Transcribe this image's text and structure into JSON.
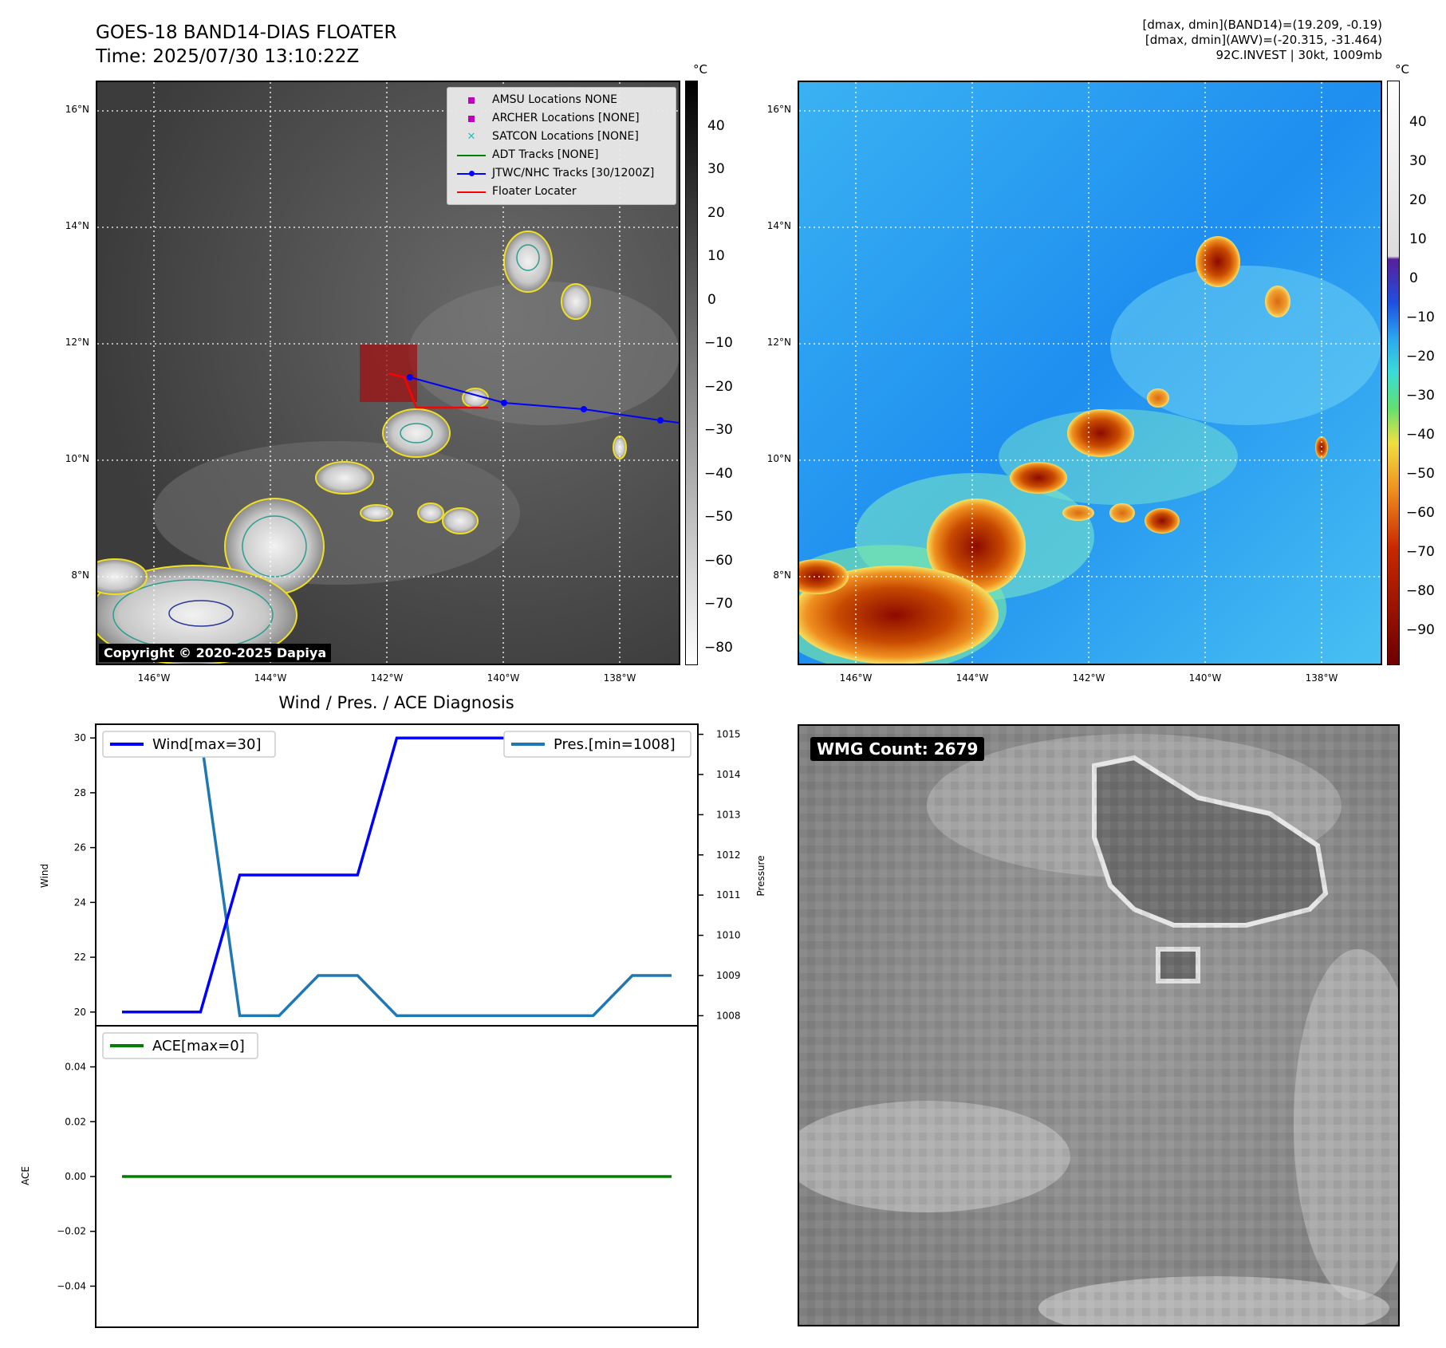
{
  "header": {
    "title": "GOES-18 BAND14-DIAS FLOATER",
    "time": "Time: 2025/07/30 13:10:22Z",
    "info_lines": [
      "[dmax, dmin](BAND14)=(19.209, -0.19)",
      "[dmax, dmin](AWV)=(-20.315, -31.464)",
      "92C.INVEST | 30kt, 1009mb"
    ]
  },
  "map_axes": {
    "lat_ticks": [
      "16°N",
      "14°N",
      "12°N",
      "10°N",
      "8°N"
    ],
    "lon_ticks": [
      "146°W",
      "144°W",
      "142°W",
      "140°W",
      "138°W"
    ]
  },
  "left_map": {
    "copyright": "Copyright © 2020-2025 Dapiya",
    "legend": [
      {
        "label": "AMSU Locations NONE",
        "symbol": "square",
        "color": "#c000c0"
      },
      {
        "label": "ARCHER Locations [NONE]",
        "symbol": "square",
        "color": "#c000c0"
      },
      {
        "label": "SATCON Locations [NONE]",
        "symbol": "x",
        "color": "#20c0c0"
      },
      {
        "label": "ADT Tracks [NONE]",
        "symbol": "line",
        "color": "#008000"
      },
      {
        "label": "JTWC/NHC Tracks [30/1200Z]",
        "symbol": "line-dot",
        "color": "#0000ff"
      },
      {
        "label": "Floater Locater",
        "symbol": "line",
        "color": "#ff0000"
      }
    ],
    "colorbar": {
      "unit": "°C",
      "ticks": [
        "40",
        "30",
        "20",
        "10",
        "0",
        "−10",
        "−20",
        "−30",
        "−40",
        "−50",
        "−60",
        "−70",
        "−80"
      ]
    }
  },
  "right_map": {
    "colorbar": {
      "unit": "°C",
      "ticks": [
        "40",
        "30",
        "20",
        "10",
        "0",
        "−10",
        "−20",
        "−30",
        "−40",
        "−50",
        "−60",
        "−70",
        "−80",
        "−90"
      ]
    }
  },
  "wmg_panel": {
    "count_label": "WMG Count: 2679"
  },
  "diagnosis": {
    "title": "Wind / Pres. / ACE Diagnosis",
    "wind_axis_label": "Wind",
    "pressure_axis_label": "Pressure",
    "ace_axis_label": "ACE",
    "wind_legend": "Wind[max=30]",
    "pres_legend": "Pres.[min=1008]",
    "ace_legend": "ACE[max=0]",
    "wind_ticks": [
      "30",
      "28",
      "26",
      "24",
      "22",
      "20"
    ],
    "pressure_ticks": [
      "1015",
      "1014",
      "1013",
      "1012",
      "1011",
      "1010",
      "1009",
      "1008"
    ],
    "ace_ticks": [
      "0.04",
      "0.02",
      "0.00",
      "−0.02",
      "−0.04"
    ]
  },
  "colors": {
    "wind": "#0000ff",
    "pressure": "#1f77b4",
    "ace": "#008000",
    "track": "#0000ff",
    "floater": "#ff0000"
  },
  "chart_data": [
    {
      "type": "line",
      "title": "Wind / Pres. / ACE Diagnosis",
      "ylabel": "Wind",
      "ylim": [
        19.5,
        30.5
      ],
      "y2label": "Pressure",
      "y2lim": [
        1007.75,
        1015.25
      ],
      "x": [
        0,
        1,
        2,
        3,
        4,
        5,
        6,
        7,
        8,
        9,
        10,
        11,
        12,
        13,
        14
      ],
      "series": [
        {
          "name": "Wind[max=30]",
          "axis": "left",
          "values": [
            20,
            20,
            20,
            25,
            25,
            25,
            25,
            30,
            30,
            30,
            30,
            30,
            30,
            30,
            30
          ]
        },
        {
          "name": "Pres.[min=1008]",
          "axis": "right",
          "values": [
            1015,
            1015,
            1015,
            1008,
            1008,
            1009,
            1009,
            1008,
            1008,
            1008,
            1008,
            1008,
            1008,
            1009,
            1009
          ]
        }
      ]
    },
    {
      "type": "line",
      "ylabel": "ACE",
      "ylim": [
        -0.055,
        0.055
      ],
      "x": [
        0,
        1,
        2,
        3,
        4,
        5,
        6,
        7,
        8,
        9,
        10,
        11,
        12,
        13,
        14
      ],
      "series": [
        {
          "name": "ACE[max=0]",
          "values": [
            0,
            0,
            0,
            0,
            0,
            0,
            0,
            0,
            0,
            0,
            0,
            0,
            0,
            0,
            0
          ]
        }
      ]
    }
  ]
}
